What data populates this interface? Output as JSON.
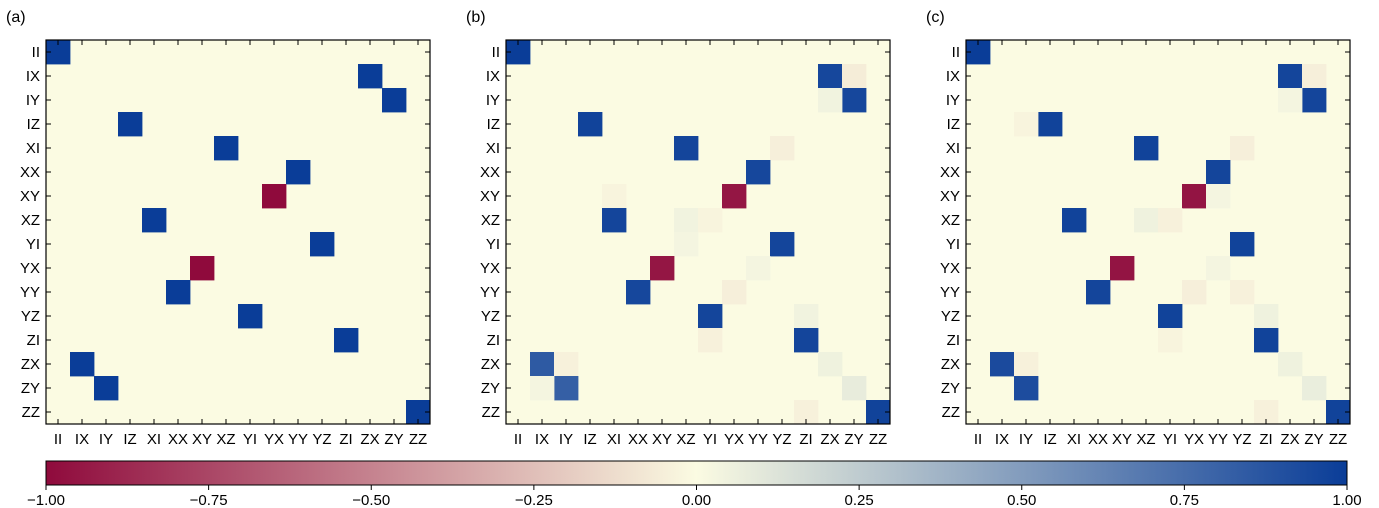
{
  "chart_data": {
    "type": "heatmap",
    "labels": [
      "II",
      "IX",
      "IY",
      "IZ",
      "XI",
      "XX",
      "XY",
      "XZ",
      "YI",
      "YX",
      "YY",
      "YZ",
      "ZI",
      "ZX",
      "ZY",
      "ZZ"
    ],
    "colorbar": {
      "vmin": -1.0,
      "vmax": 1.0,
      "ticks": [
        -1.0,
        -0.75,
        -0.5,
        -0.25,
        0.0,
        0.25,
        0.5,
        0.75,
        1.0
      ],
      "tick_labels": [
        "−1.00",
        "−0.75",
        "−0.50",
        "−0.25",
        "0.00",
        "0.25",
        "0.50",
        "0.75",
        "1.00"
      ],
      "colors": {
        "negative": "#8f0a3c",
        "zero": "#fbfbe2",
        "positive": "#0a3d98"
      }
    },
    "panels": [
      {
        "label": "(a)",
        "entries": [
          {
            "row": "II",
            "col": "II",
            "value": 1.0
          },
          {
            "row": "IX",
            "col": "ZX",
            "value": 1.0
          },
          {
            "row": "IY",
            "col": "ZY",
            "value": 1.0
          },
          {
            "row": "IZ",
            "col": "IZ",
            "value": 1.0
          },
          {
            "row": "XI",
            "col": "XZ",
            "value": 1.0
          },
          {
            "row": "XX",
            "col": "YY",
            "value": 1.0
          },
          {
            "row": "XY",
            "col": "YX",
            "value": -1.0
          },
          {
            "row": "XZ",
            "col": "XI",
            "value": 1.0
          },
          {
            "row": "YI",
            "col": "YZ",
            "value": 1.0
          },
          {
            "row": "YX",
            "col": "XY",
            "value": -1.0
          },
          {
            "row": "YY",
            "col": "XX",
            "value": 1.0
          },
          {
            "row": "YZ",
            "col": "YI",
            "value": 1.0
          },
          {
            "row": "ZI",
            "col": "ZI",
            "value": 1.0
          },
          {
            "row": "ZX",
            "col": "IX",
            "value": 1.0
          },
          {
            "row": "ZY",
            "col": "IY",
            "value": 1.0
          },
          {
            "row": "ZZ",
            "col": "ZZ",
            "value": 1.0
          }
        ]
      },
      {
        "label": "(b)",
        "entries": [
          {
            "row": "II",
            "col": "II",
            "value": 1.0
          },
          {
            "row": "IX",
            "col": "ZX",
            "value": 0.95
          },
          {
            "row": "IX",
            "col": "ZY",
            "value": -0.06
          },
          {
            "row": "IY",
            "col": "ZY",
            "value": 0.95
          },
          {
            "row": "IY",
            "col": "ZX",
            "value": 0.04
          },
          {
            "row": "IZ",
            "col": "IZ",
            "value": 0.97
          },
          {
            "row": "XI",
            "col": "XZ",
            "value": 0.96
          },
          {
            "row": "XI",
            "col": "YZ",
            "value": -0.05
          },
          {
            "row": "XX",
            "col": "YY",
            "value": 0.95
          },
          {
            "row": "XY",
            "col": "YX",
            "value": -0.95
          },
          {
            "row": "XY",
            "col": "XI",
            "value": -0.03
          },
          {
            "row": "XZ",
            "col": "XI",
            "value": 0.96
          },
          {
            "row": "XZ",
            "col": "XZ",
            "value": 0.04
          },
          {
            "row": "XZ",
            "col": "YI",
            "value": -0.03
          },
          {
            "row": "YI",
            "col": "YZ",
            "value": 0.96
          },
          {
            "row": "YI",
            "col": "XZ",
            "value": 0.03
          },
          {
            "row": "YX",
            "col": "XY",
            "value": -0.95
          },
          {
            "row": "YX",
            "col": "YY",
            "value": 0.03
          },
          {
            "row": "YY",
            "col": "XX",
            "value": 0.95
          },
          {
            "row": "YY",
            "col": "YX",
            "value": -0.05
          },
          {
            "row": "YZ",
            "col": "YI",
            "value": 0.96
          },
          {
            "row": "YZ",
            "col": "ZI",
            "value": 0.04
          },
          {
            "row": "ZI",
            "col": "ZI",
            "value": 0.96
          },
          {
            "row": "ZI",
            "col": "YI",
            "value": -0.04
          },
          {
            "row": "ZX",
            "col": "IX",
            "value": 0.85
          },
          {
            "row": "ZX",
            "col": "IY",
            "value": -0.04
          },
          {
            "row": "ZX",
            "col": "ZX",
            "value": 0.05
          },
          {
            "row": "ZY",
            "col": "IY",
            "value": 0.82
          },
          {
            "row": "ZY",
            "col": "ZY",
            "value": 0.08
          },
          {
            "row": "ZY",
            "col": "IX",
            "value": 0.03
          },
          {
            "row": "ZZ",
            "col": "ZZ",
            "value": 0.97
          },
          {
            "row": "ZZ",
            "col": "ZI",
            "value": -0.04
          }
        ]
      },
      {
        "label": "(c)",
        "entries": [
          {
            "row": "II",
            "col": "II",
            "value": 1.0
          },
          {
            "row": "IX",
            "col": "ZX",
            "value": 0.96
          },
          {
            "row": "IX",
            "col": "ZY",
            "value": -0.05
          },
          {
            "row": "IY",
            "col": "ZY",
            "value": 0.96
          },
          {
            "row": "IY",
            "col": "ZX",
            "value": 0.03
          },
          {
            "row": "IZ",
            "col": "IZ",
            "value": 0.97
          },
          {
            "row": "IZ",
            "col": "IY",
            "value": -0.03
          },
          {
            "row": "XI",
            "col": "XZ",
            "value": 0.97
          },
          {
            "row": "XI",
            "col": "YZ",
            "value": -0.05
          },
          {
            "row": "XX",
            "col": "YY",
            "value": 0.96
          },
          {
            "row": "XY",
            "col": "YX",
            "value": -0.96
          },
          {
            "row": "XY",
            "col": "YY",
            "value": 0.03
          },
          {
            "row": "XZ",
            "col": "XI",
            "value": 0.97
          },
          {
            "row": "XZ",
            "col": "XZ",
            "value": 0.05
          },
          {
            "row": "XZ",
            "col": "YI",
            "value": -0.04
          },
          {
            "row": "YI",
            "col": "YZ",
            "value": 0.97
          },
          {
            "row": "YX",
            "col": "XY",
            "value": -0.96
          },
          {
            "row": "YX",
            "col": "YY",
            "value": 0.03
          },
          {
            "row": "YY",
            "col": "XX",
            "value": 0.96
          },
          {
            "row": "YY",
            "col": "YX",
            "value": -0.05
          },
          {
            "row": "YY",
            "col": "YZ",
            "value": -0.04
          },
          {
            "row": "YZ",
            "col": "YI",
            "value": 0.97
          },
          {
            "row": "YZ",
            "col": "ZI",
            "value": 0.05
          },
          {
            "row": "ZI",
            "col": "ZI",
            "value": 0.97
          },
          {
            "row": "ZI",
            "col": "YI",
            "value": -0.03
          },
          {
            "row": "ZX",
            "col": "IX",
            "value": 0.93
          },
          {
            "row": "ZX",
            "col": "IY",
            "value": -0.04
          },
          {
            "row": "ZX",
            "col": "ZX",
            "value": 0.05
          },
          {
            "row": "ZY",
            "col": "IY",
            "value": 0.92
          },
          {
            "row": "ZY",
            "col": "ZY",
            "value": 0.07
          },
          {
            "row": "ZZ",
            "col": "ZZ",
            "value": 0.97
          },
          {
            "row": "ZZ",
            "col": "ZI",
            "value": -0.04
          }
        ]
      }
    ]
  }
}
